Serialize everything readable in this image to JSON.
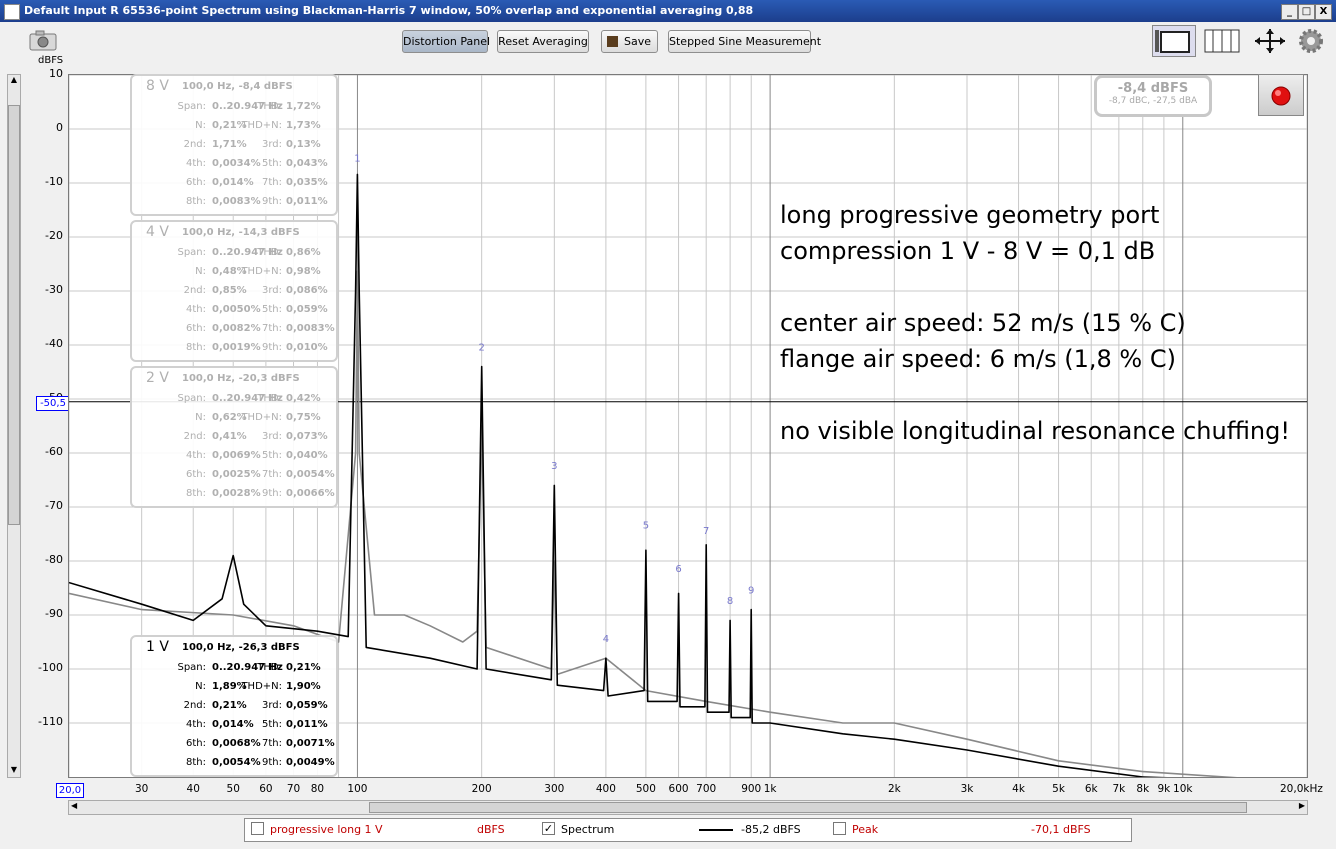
{
  "window": {
    "title": "Default Input R 65536-point Spectrum using Blackman-Harris 7 window, 50% overlap and exponential averaging 0,88",
    "buttons": [
      "_",
      "□",
      "X"
    ]
  },
  "toolbar": {
    "distortion_label": "Distortion Panel",
    "reset_label": "Reset Averaging",
    "save_label": "Save",
    "stepped_label": "Stepped Sine Measurement"
  },
  "level_readout": {
    "main": "-8,4 dBFS",
    "sub": "-8,7 dBC, -27,5 dBA"
  },
  "panels": [
    {
      "voltage": "8 V",
      "summary": "100,0 Hz, -8,4 dBFS",
      "rows": [
        [
          "Span:",
          "0..20.947 Hz",
          "THD:",
          "1,72%"
        ],
        [
          "N:",
          "0,21%",
          "THD+N:",
          "1,73%"
        ],
        [
          "2nd:",
          "1,71%",
          "3rd:",
          "0,13%"
        ],
        [
          "4th:",
          "0,0034%",
          "5th:",
          "0,043%"
        ],
        [
          "6th:",
          "0,014%",
          "7th:",
          "0,035%"
        ],
        [
          "8th:",
          "0,0083%",
          "9th:",
          "0,011%"
        ]
      ]
    },
    {
      "voltage": "4 V",
      "summary": "100,0 Hz, -14,3 dBFS",
      "rows": [
        [
          "Span:",
          "0..20.947 Hz",
          "THD:",
          "0,86%"
        ],
        [
          "N:",
          "0,48%",
          "THD+N:",
          "0,98%"
        ],
        [
          "2nd:",
          "0,85%",
          "3rd:",
          "0,086%"
        ],
        [
          "4th:",
          "0,0050%",
          "5th:",
          "0,059%"
        ],
        [
          "6th:",
          "0,0082%",
          "7th:",
          "0,0083%"
        ],
        [
          "8th:",
          "0,0019%",
          "9th:",
          "0,010%"
        ]
      ]
    },
    {
      "voltage": "2 V",
      "summary": "100,0 Hz, -20,3 dBFS",
      "rows": [
        [
          "Span:",
          "0..20.947 Hz",
          "THD:",
          "0,42%"
        ],
        [
          "N:",
          "0,62%",
          "THD+N:",
          "0,75%"
        ],
        [
          "2nd:",
          "0,41%",
          "3rd:",
          "0,073%"
        ],
        [
          "4th:",
          "0,0069%",
          "5th:",
          "0,040%"
        ],
        [
          "6th:",
          "0,0025%",
          "7th:",
          "0,0054%"
        ],
        [
          "8th:",
          "0,0028%",
          "9th:",
          "0,0066%"
        ]
      ]
    },
    {
      "voltage": "1 V",
      "summary": "100,0 Hz, -26,3 dBFS",
      "rows": [
        [
          "Span:",
          "0..20.947 Hz",
          "THD:",
          "0,21%"
        ],
        [
          "N:",
          "1,89%",
          "THD+N:",
          "1,90%"
        ],
        [
          "2nd:",
          "0,21%",
          "3rd:",
          "0,059%"
        ],
        [
          "4th:",
          "0,014%",
          "5th:",
          "0,011%"
        ],
        [
          "6th:",
          "0,0068%",
          "7th:",
          "0,0071%"
        ],
        [
          "8th:",
          "0,0054%",
          "9th:",
          "0,0049%"
        ]
      ]
    }
  ],
  "annotations": {
    "line1": "long progressive geometry port",
    "line2": "compression 1 V - 8 V = 0,1 dB",
    "line3": "center air speed: 52 m/s (15 % C)",
    "line4": "flange air speed:    6 m/s (1,8 % C)",
    "line5": "no visible longitudinal resonance chuffing!"
  },
  "legend": {
    "trace1_label": "progressive long 1 V",
    "trace1_unit": "dBFS",
    "spectrum_label": "Spectrum",
    "spectrum_value": "-85,2 dBFS",
    "peak_label": "Peak",
    "peak_value": "-70,1 dBFS",
    "spectrum_checked": "✓"
  },
  "axis": {
    "y_unit": "dBFS",
    "cursor_y": "-50,5",
    "x_start": "20,0",
    "x_end": "20,0kHz"
  },
  "chart_data": {
    "type": "line",
    "title": "",
    "xlabel": "",
    "ylabel": "dBFS",
    "x_scale": "log",
    "xlim": [
      20,
      20000
    ],
    "ylim": [
      -120,
      10
    ],
    "grid": true,
    "legend_position": "bottom",
    "y_ticks": [
      10,
      0,
      -10,
      -20,
      -30,
      -40,
      -50,
      -60,
      -70,
      -80,
      -90,
      -100,
      -110
    ],
    "x_ticks": [
      {
        "v": 30,
        "l": "30"
      },
      {
        "v": 40,
        "l": "40"
      },
      {
        "v": 50,
        "l": "50"
      },
      {
        "v": 60,
        "l": "60"
      },
      {
        "v": 70,
        "l": "70"
      },
      {
        "v": 80,
        "l": "80"
      },
      {
        "v": 100,
        "l": "100"
      },
      {
        "v": 200,
        "l": "200"
      },
      {
        "v": 300,
        "l": "300"
      },
      {
        "v": 400,
        "l": "400"
      },
      {
        "v": 500,
        "l": "500"
      },
      {
        "v": 600,
        "l": "600"
      },
      {
        "v": 700,
        "l": "700"
      },
      {
        "v": 900,
        "l": "900"
      },
      {
        "v": 1000,
        "l": "1k"
      },
      {
        "v": 2000,
        "l": "2k"
      },
      {
        "v": 3000,
        "l": "3k"
      },
      {
        "v": 4000,
        "l": "4k"
      },
      {
        "v": 5000,
        "l": "5k"
      },
      {
        "v": 6000,
        "l": "6k"
      },
      {
        "v": 7000,
        "l": "7k"
      },
      {
        "v": 8000,
        "l": "8k"
      },
      {
        "v": 9000,
        "l": "9k"
      },
      {
        "v": 10000,
        "l": "10k"
      }
    ],
    "cursor_level": -50.5,
    "series": [
      {
        "color": "#000000",
        "points": [
          [
            20,
            -84
          ],
          [
            30,
            -88
          ],
          [
            40,
            -91
          ],
          [
            47,
            -87
          ],
          [
            50,
            -79
          ],
          [
            53,
            -88
          ],
          [
            60,
            -92
          ],
          [
            80,
            -93
          ],
          [
            95,
            -94
          ],
          [
            99,
            -30
          ],
          [
            100,
            -8.4
          ],
          [
            101,
            -30
          ],
          [
            105,
            -96
          ],
          [
            150,
            -98
          ],
          [
            195,
            -100
          ],
          [
            200,
            -44
          ],
          [
            205,
            -100
          ],
          [
            295,
            -102
          ],
          [
            300,
            -66
          ],
          [
            305,
            -103
          ],
          [
            395,
            -104
          ],
          [
            400,
            -98
          ],
          [
            405,
            -105
          ],
          [
            495,
            -104
          ],
          [
            500,
            -78
          ],
          [
            505,
            -106
          ],
          [
            595,
            -106
          ],
          [
            600,
            -86
          ],
          [
            605,
            -107
          ],
          [
            695,
            -107
          ],
          [
            700,
            -77
          ],
          [
            705,
            -108
          ],
          [
            795,
            -108
          ],
          [
            800,
            -91
          ],
          [
            805,
            -109
          ],
          [
            895,
            -109
          ],
          [
            900,
            -89
          ],
          [
            905,
            -110
          ],
          [
            1000,
            -110
          ],
          [
            1500,
            -112
          ],
          [
            2000,
            -113
          ],
          [
            3000,
            -115
          ],
          [
            5000,
            -118
          ],
          [
            8000,
            -120
          ],
          [
            20000,
            -121
          ]
        ]
      },
      {
        "color": "#888888",
        "points": [
          [
            20,
            -86
          ],
          [
            30,
            -89
          ],
          [
            50,
            -90
          ],
          [
            70,
            -92
          ],
          [
            90,
            -95
          ],
          [
            99,
            -60
          ],
          [
            100,
            -26.3
          ],
          [
            101,
            -60
          ],
          [
            110,
            -90
          ],
          [
            130,
            -90
          ],
          [
            150,
            -92
          ],
          [
            180,
            -95
          ],
          [
            195,
            -93
          ],
          [
            200,
            -55
          ],
          [
            205,
            -96
          ],
          [
            295,
            -100
          ],
          [
            300,
            -80
          ],
          [
            305,
            -101
          ],
          [
            400,
            -98
          ],
          [
            500,
            -104
          ],
          [
            700,
            -106
          ],
          [
            1000,
            -108
          ],
          [
            1500,
            -110
          ],
          [
            2000,
            -110
          ],
          [
            3000,
            -113
          ],
          [
            5000,
            -117
          ],
          [
            8000,
            -119
          ],
          [
            20000,
            -121
          ]
        ]
      }
    ],
    "harmonic_labels": [
      {
        "x": 200,
        "y": -41,
        "t": "2"
      },
      {
        "x": 300,
        "y": -63,
        "t": "3"
      },
      {
        "x": 400,
        "y": -95,
        "t": "4"
      },
      {
        "x": 500,
        "y": -74,
        "t": "5"
      },
      {
        "x": 600,
        "y": -82,
        "t": "6"
      },
      {
        "x": 700,
        "y": -75,
        "t": "7"
      },
      {
        "x": 800,
        "y": -88,
        "t": "8"
      },
      {
        "x": 900,
        "y": -86,
        "t": "9"
      },
      {
        "x": 100,
        "y": -6,
        "t": "1"
      }
    ]
  }
}
